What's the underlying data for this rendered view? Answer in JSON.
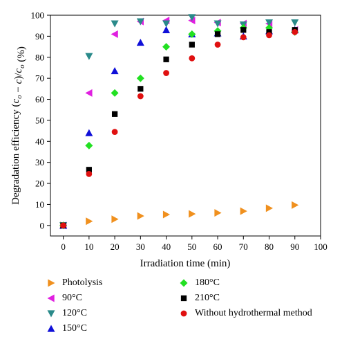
{
  "chart_data": {
    "type": "scatter",
    "xlabel": "Irradiation time (min)",
    "ylabel": "Degradation efficiency ($c_o$ − $c$)/$c_o$ (%)",
    "xlim": [
      -5,
      100
    ],
    "ylim": [
      -5,
      100
    ],
    "xticks": [
      "0",
      "10",
      "20",
      "30",
      "40",
      "50",
      "60",
      "70",
      "80",
      "90",
      "100"
    ],
    "yticks": [
      "0",
      "10",
      "20",
      "30",
      "40",
      "50",
      "60",
      "70",
      "80",
      "90",
      "100"
    ],
    "grid": false,
    "legend_placement": "below",
    "series": [
      {
        "name": "Photolysis",
        "marker": "triangle-right",
        "color": "#f0901e",
        "x": [
          0,
          10,
          20,
          30,
          40,
          50,
          60,
          70,
          80,
          90
        ],
        "y": [
          0,
          2,
          3,
          4.5,
          5.2,
          5.5,
          6,
          6.8,
          8.2,
          9.7
        ]
      },
      {
        "name": "90°C",
        "marker": "triangle-left",
        "color": "#e020e0",
        "x": [
          0,
          10,
          20,
          30,
          40,
          50,
          60,
          70,
          80,
          90
        ],
        "y": [
          0,
          63,
          91,
          97,
          97.5,
          97.5,
          96.5,
          96,
          96,
          93
        ]
      },
      {
        "name": "120°C",
        "marker": "triangle-down",
        "color": "#2a8a8a",
        "x": [
          0,
          10,
          20,
          30,
          40,
          50,
          60,
          70,
          80,
          90
        ],
        "y": [
          0,
          80.5,
          96,
          97,
          96,
          99,
          96,
          95.5,
          96.5,
          96.5
        ]
      },
      {
        "name": "150°C",
        "marker": "triangle-up",
        "color": "#1010d8",
        "x": [
          0,
          10,
          20,
          30,
          40,
          50,
          60,
          70,
          80,
          90
        ],
        "y": [
          0,
          44,
          73.5,
          87,
          93,
          91,
          91.5,
          90,
          92.5,
          93
        ]
      },
      {
        "name": "180°C",
        "marker": "diamond",
        "color": "#22e022",
        "x": [
          0,
          10,
          20,
          30,
          40,
          50,
          60,
          70,
          80,
          90
        ],
        "y": [
          0,
          38,
          63,
          70,
          85,
          91,
          92.5,
          94,
          94,
          92
        ]
      },
      {
        "name": "210°C",
        "marker": "square",
        "color": "#000000",
        "x": [
          0,
          10,
          20,
          30,
          40,
          50,
          60,
          70,
          80,
          90
        ],
        "y": [
          0,
          26.5,
          53,
          65,
          79,
          86,
          91,
          93,
          92,
          93
        ]
      },
      {
        "name": "Without hydrothermal method",
        "marker": "circle",
        "color": "#e01010",
        "x": [
          0,
          10,
          20,
          30,
          40,
          50,
          60,
          70,
          80,
          90
        ],
        "y": [
          0,
          24.5,
          44.5,
          61.5,
          72.5,
          79.5,
          86,
          89.5,
          90.5,
          92
        ]
      }
    ]
  }
}
